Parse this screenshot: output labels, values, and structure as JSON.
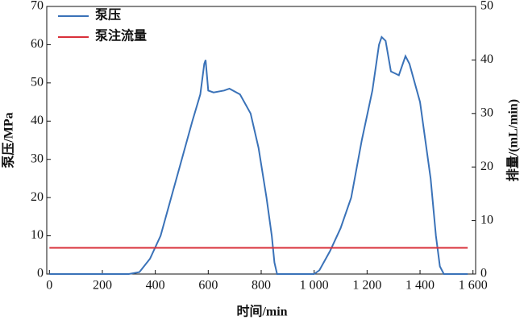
{
  "chart_data": {
    "type": "line",
    "xlabel": "时间/min",
    "ylabel": "泵压/MPa",
    "y2label": "排量/(mL/min)",
    "xlim": [
      -10,
      1610
    ],
    "xticks": [
      0,
      200,
      400,
      600,
      800,
      {
        "value": 1000,
        "label": "1 000"
      },
      {
        "value": 1200,
        "label": "1 200"
      },
      {
        "value": 1400,
        "label": "1 400"
      },
      {
        "value": 1600,
        "label": "1 600"
      }
    ],
    "ylim": [
      0,
      70
    ],
    "yticks": [
      0,
      10,
      20,
      30,
      40,
      50,
      60,
      70
    ],
    "y2lim": [
      0,
      50
    ],
    "y2ticks": [
      0,
      10,
      20,
      30,
      40,
      50
    ],
    "legend": "top-left",
    "series": [
      {
        "name": "泵压",
        "color": "#3a72b8",
        "x": [
          0,
          300,
          340,
          380,
          420,
          460,
          500,
          540,
          570,
          585,
          590,
          600,
          620,
          660,
          680,
          720,
          760,
          790,
          820,
          840,
          850,
          860,
          1000,
          1020,
          1060,
          1100,
          1140,
          1180,
          1220,
          1245,
          1255,
          1270,
          1290,
          1320,
          1345,
          1360,
          1400,
          1440,
          1460,
          1475,
          1490,
          1580
        ],
        "values": [
          0,
          0,
          0.5,
          4,
          10,
          20,
          30,
          40,
          47,
          55,
          56,
          48,
          47.5,
          48,
          48.5,
          47,
          42,
          33,
          20,
          10,
          3,
          0,
          0,
          1,
          6,
          12,
          20,
          35,
          48,
          60,
          62,
          61,
          53,
          52,
          57,
          55,
          45,
          25,
          10,
          2,
          0,
          0
        ]
      },
      {
        "name": "泵注流量",
        "color": "#d9303a",
        "axis": "y2",
        "x": [
          0,
          400,
          800,
          1200,
          1580
        ],
        "values": [
          4.9,
          4.9,
          4.9,
          4.9,
          4.9
        ]
      }
    ]
  }
}
